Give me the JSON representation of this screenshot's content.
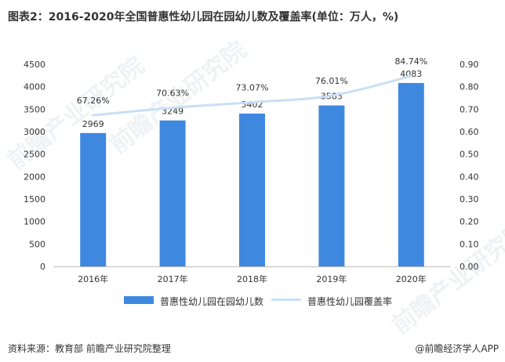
{
  "title": "图表2：2016-2020年全国普惠性幼儿园在园幼儿数及覆盖率(单位：万人，%)",
  "source": "资料来源：教育部 前瞻产业研究院整理",
  "brand": "@前瞻经济学人APP",
  "watermark": "前瞻产业研究院",
  "colors": {
    "bar": "#3f88e0",
    "line": "#c9dff5",
    "text": "#333333"
  },
  "legend": [
    {
      "label": "普惠性幼儿园在园幼儿数",
      "kind": "bar"
    },
    {
      "label": "普惠性幼儿园覆盖率",
      "kind": "line"
    }
  ],
  "chart_data": {
    "type": "bar",
    "categories": [
      "2016年",
      "2017年",
      "2018年",
      "2019年",
      "2020年"
    ],
    "series": [
      {
        "name": "普惠性幼儿园在园幼儿数",
        "type": "bar",
        "axis": "left",
        "values": [
          2969,
          3249,
          3402,
          3583,
          4083
        ],
        "labels": [
          "2969",
          "3249",
          "3402",
          "3583",
          "4083"
        ]
      },
      {
        "name": "普惠性幼儿园覆盖率",
        "type": "line",
        "axis": "right",
        "values": [
          0.6726,
          0.7063,
          0.7307,
          0.7601,
          0.8474
        ],
        "labels": [
          "67.26%",
          "70.63%",
          "73.07%",
          "76.01%",
          "84.74%"
        ]
      }
    ],
    "y_left": {
      "min": 0,
      "max": 4500,
      "step": 500,
      "ticks": [
        "0",
        "500",
        "1000",
        "1500",
        "2000",
        "2500",
        "3000",
        "3500",
        "4000",
        "4500"
      ]
    },
    "y_right": {
      "min": 0,
      "max": 0.9,
      "step": 0.1,
      "ticks": [
        "0.00",
        "0.10",
        "0.20",
        "0.30",
        "0.40",
        "0.50",
        "0.60",
        "0.70",
        "0.80",
        "0.90"
      ]
    },
    "grid": false,
    "legend_position": "bottom"
  }
}
